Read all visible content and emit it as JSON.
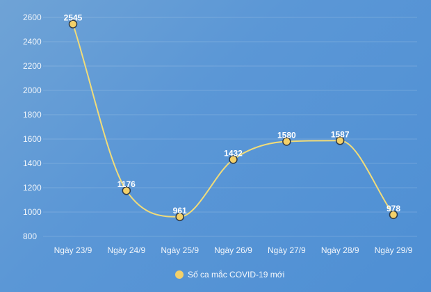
{
  "colors": {
    "line": "#f1dc79",
    "marker": "#f3d069",
    "markerStroke": "#2f3b4a"
  },
  "chart_data": {
    "type": "line",
    "title": "",
    "xlabel": "",
    "ylabel": "",
    "categories": [
      "Ngày 23/9",
      "Ngày 24/9",
      "Ngày 25/9",
      "Ngày 26/9",
      "Ngày 27/9",
      "Ngày 28/9",
      "Ngày 29/9"
    ],
    "series": [
      {
        "name": "Số ca mắc COVID-19 mới",
        "values": [
          2545,
          1176,
          961,
          1432,
          1580,
          1587,
          978
        ]
      }
    ],
    "ylim": [
      800,
      2600
    ],
    "yticks": [
      800,
      1000,
      1200,
      1400,
      1600,
      1800,
      2000,
      2200,
      2400,
      2600
    ],
    "grid": true,
    "legend_position": "bottom",
    "data_labels": true,
    "smooth": true
  }
}
